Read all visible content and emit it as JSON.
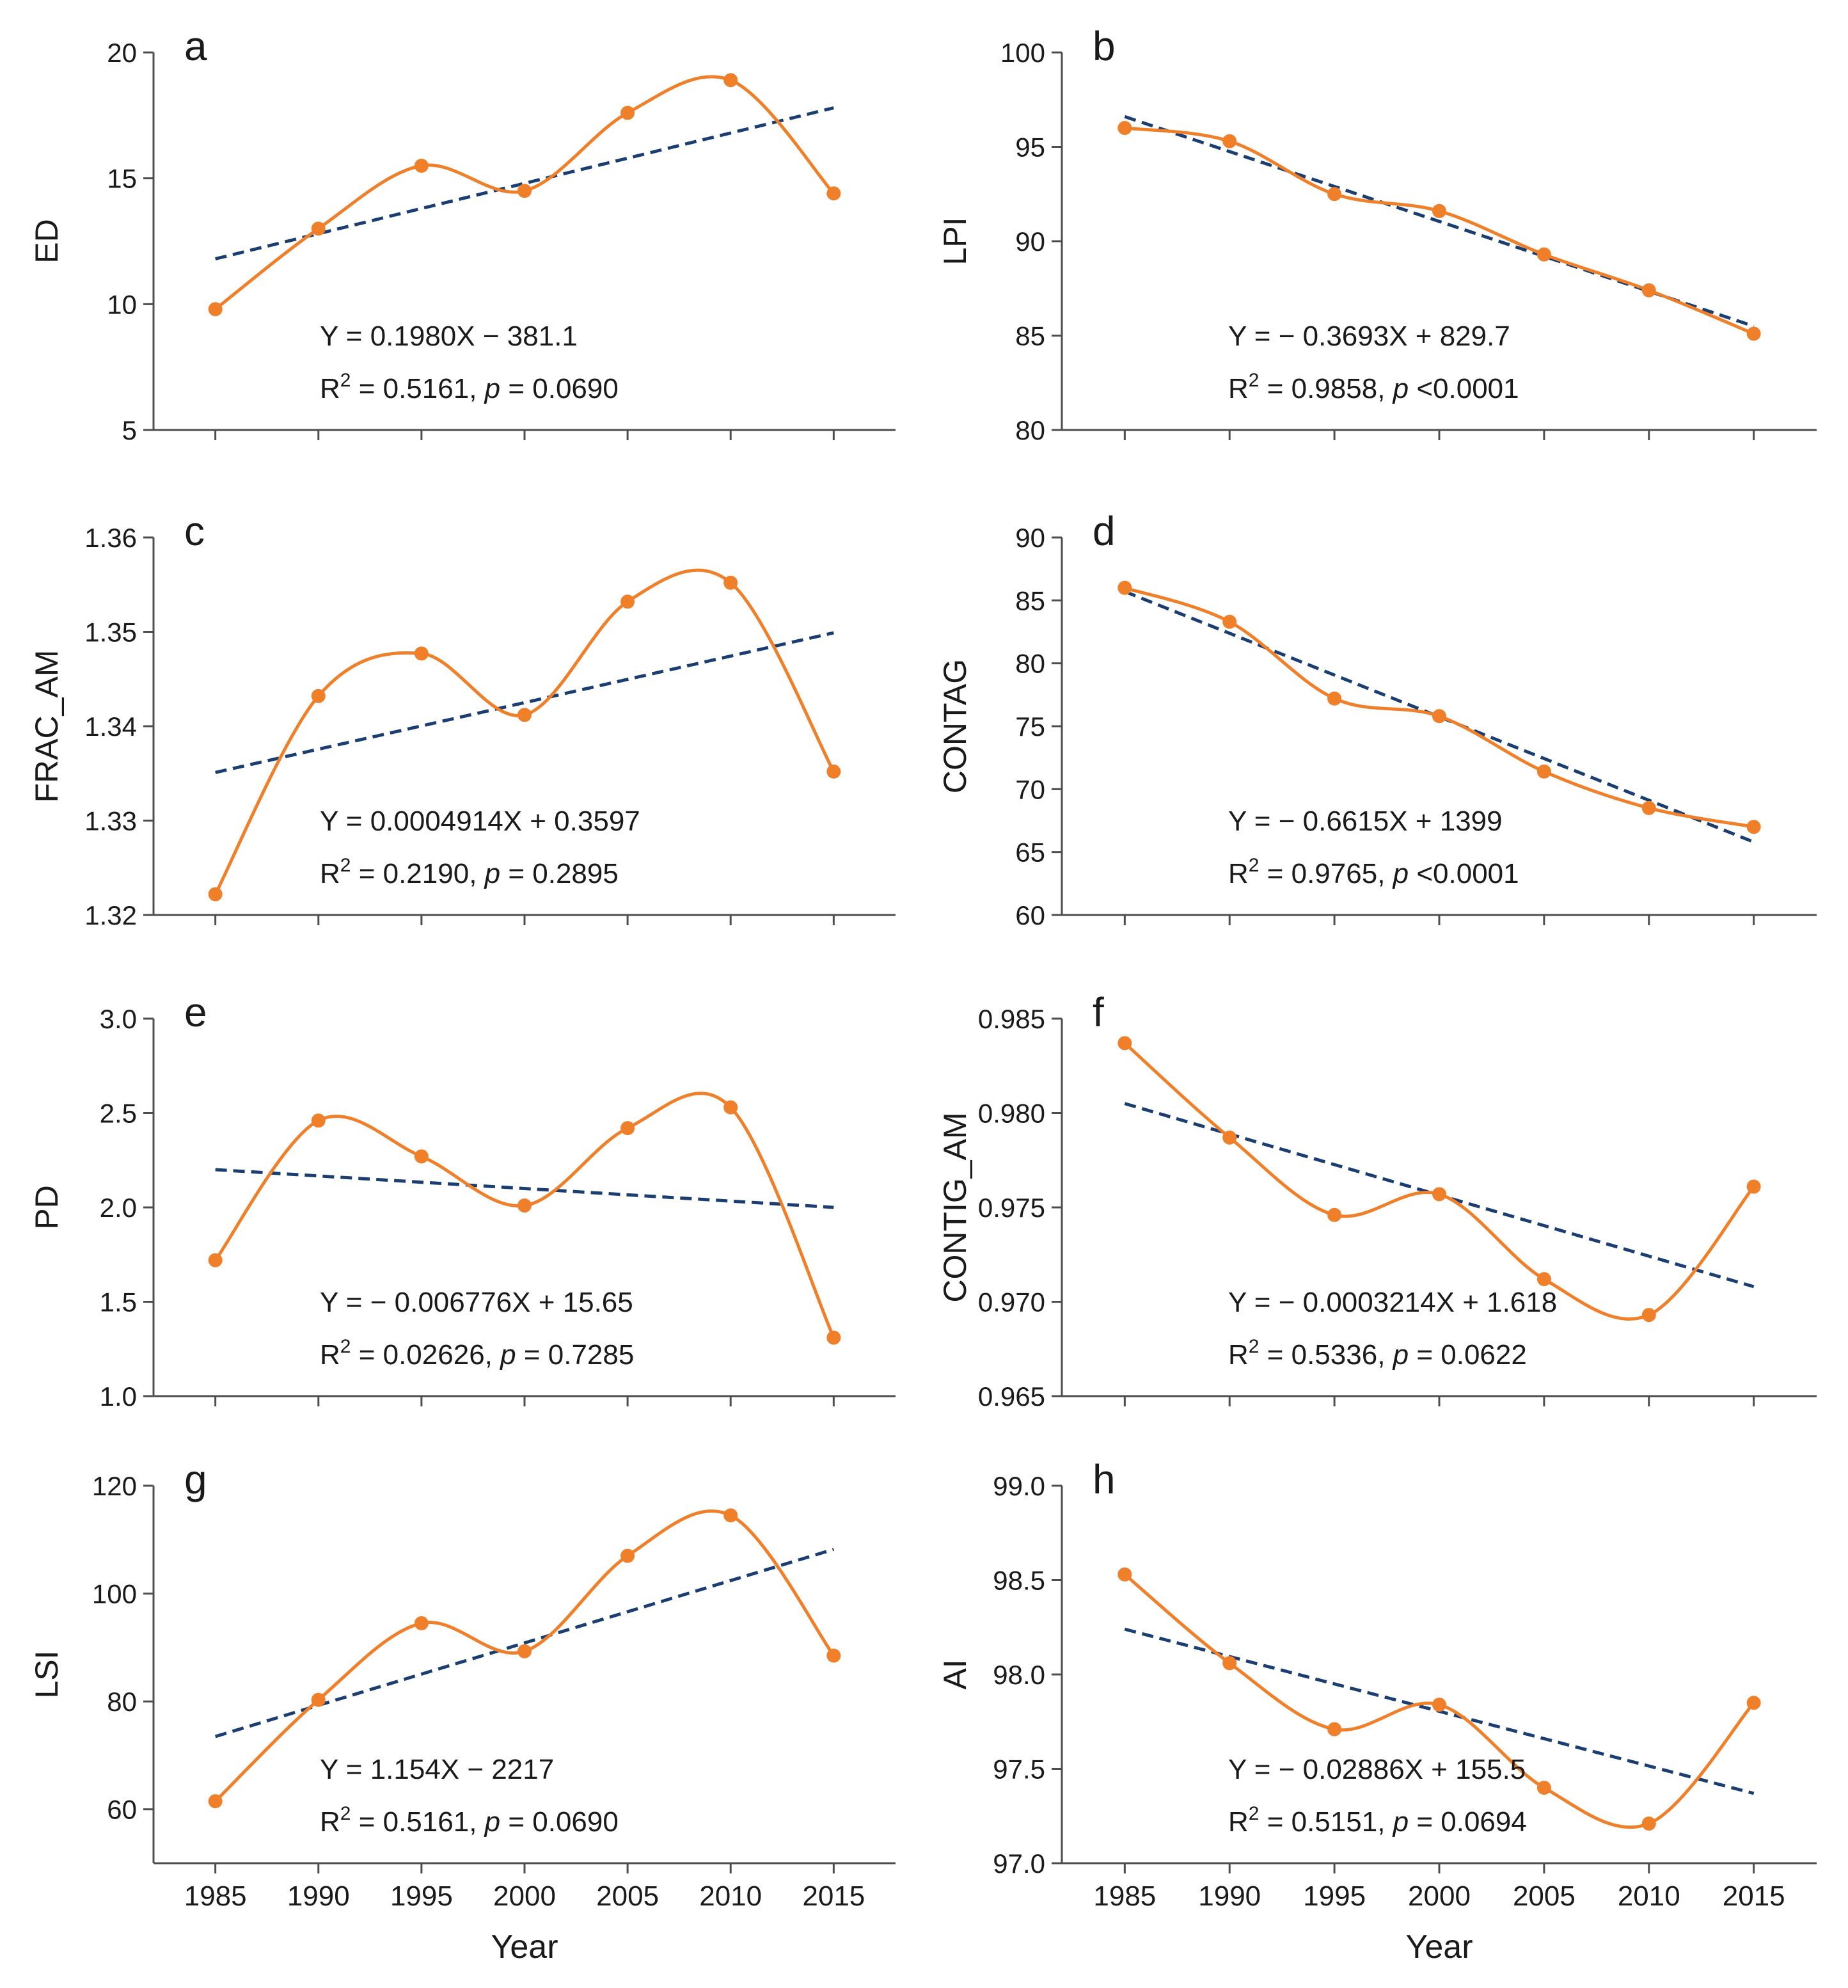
{
  "x_axis_title": "Year",
  "colors": {
    "series": "#F07F2A",
    "trend": "#1B3E72",
    "axis": "#4D4D4D",
    "text": "#1A1A1A"
  },
  "chart_data": [
    {
      "panel": "a",
      "type": "line",
      "ylabel": "ED",
      "x": [
        1985,
        1990,
        1995,
        2000,
        2005,
        2010,
        2015
      ],
      "xlim": [
        1982,
        2018
      ],
      "ylim": [
        5,
        20
      ],
      "yticks": [
        5,
        10,
        15,
        20
      ],
      "ytick_labels": [
        "5",
        "10",
        "15",
        "20"
      ],
      "values": [
        9.8,
        13.0,
        15.5,
        14.5,
        17.6,
        18.9,
        14.4
      ],
      "trend": {
        "x0": 1985,
        "y0": 11.8,
        "x1": 2015,
        "y1": 17.8
      },
      "equation": {
        "prefix": "Y = 0.1980X ",
        "op": "−",
        "suffix": " 381.1"
      },
      "stats": {
        "r2_value": " = 0.5161, ",
        "p_value": " = 0.0690"
      }
    },
    {
      "panel": "b",
      "type": "line",
      "ylabel": "LPI",
      "x": [
        1985,
        1990,
        1995,
        2000,
        2005,
        2010,
        2015
      ],
      "xlim": [
        1982,
        2018
      ],
      "ylim": [
        80,
        100
      ],
      "yticks": [
        80,
        85,
        90,
        95,
        100
      ],
      "ytick_labels": [
        "80",
        "85",
        "90",
        "95",
        "100"
      ],
      "values": [
        96.0,
        95.3,
        92.5,
        91.6,
        89.3,
        87.4,
        85.1
      ],
      "trend": {
        "x0": 1985,
        "y0": 96.6,
        "x1": 2015,
        "y1": 85.5
      },
      "equation": {
        "prefix": "Y = ",
        "op": "−",
        "suffix": " 0.3693X + 829.7"
      },
      "stats": {
        "r2_value": " = 0.9858, ",
        "p_value": " <0.0001"
      }
    },
    {
      "panel": "c",
      "type": "line",
      "ylabel": "FRAC_AM",
      "x": [
        1985,
        1990,
        1995,
        2000,
        2005,
        2010,
        2015
      ],
      "xlim": [
        1982,
        2018
      ],
      "ylim": [
        1.32,
        1.36
      ],
      "yticks": [
        1.32,
        1.33,
        1.34,
        1.35,
        1.36
      ],
      "ytick_labels": [
        "1.32",
        "1.33",
        "1.34",
        "1.35",
        "1.36"
      ],
      "values": [
        1.3222,
        1.3432,
        1.3477,
        1.3412,
        1.3532,
        1.3552,
        1.3352
      ],
      "trend": {
        "x0": 1985,
        "y0": 1.3351,
        "x1": 2015,
        "y1": 1.3499
      },
      "equation": {
        "prefix": "Y = 0.0004914X + 0.3597",
        "op": "",
        "suffix": ""
      },
      "stats": {
        "r2_value": " = 0.2190, ",
        "p_value": " = 0.2895"
      }
    },
    {
      "panel": "d",
      "type": "line",
      "ylabel": "CONTAG",
      "x": [
        1985,
        1990,
        1995,
        2000,
        2005,
        2010,
        2015
      ],
      "xlim": [
        1982,
        2018
      ],
      "ylim": [
        60,
        90
      ],
      "yticks": [
        60,
        65,
        70,
        75,
        80,
        85,
        90
      ],
      "ytick_labels": [
        "60",
        "65",
        "70",
        "75",
        "80",
        "85",
        "90"
      ],
      "values": [
        86.0,
        83.3,
        77.2,
        75.8,
        71.4,
        68.5,
        67.0
      ],
      "trend": {
        "x0": 1985,
        "y0": 85.7,
        "x1": 2015,
        "y1": 65.8
      },
      "equation": {
        "prefix": "Y = ",
        "op": "−",
        "suffix": " 0.6615X + 1399"
      },
      "stats": {
        "r2_value": " = 0.9765, ",
        "p_value": " <0.0001"
      }
    },
    {
      "panel": "e",
      "type": "line",
      "ylabel": "PD",
      "x": [
        1985,
        1990,
        1995,
        2000,
        2005,
        2010,
        2015
      ],
      "xlim": [
        1982,
        2018
      ],
      "ylim": [
        1.0,
        3.0
      ],
      "yticks": [
        1.0,
        1.5,
        2.0,
        2.5,
        3.0
      ],
      "ytick_labels": [
        "1.0",
        "1.5",
        "2.0",
        "2.5",
        "3.0"
      ],
      "values": [
        1.72,
        2.46,
        2.27,
        2.01,
        2.42,
        2.53,
        1.31
      ],
      "trend": {
        "x0": 1985,
        "y0": 2.2,
        "x1": 2015,
        "y1": 2.0
      },
      "equation": {
        "prefix": "Y = ",
        "op": "−",
        "suffix": " 0.006776X + 15.65"
      },
      "stats": {
        "r2_value": " = 0.02626, ",
        "p_value": " = 0.7285"
      }
    },
    {
      "panel": "f",
      "type": "line",
      "ylabel": "CONTIG_AM",
      "x": [
        1985,
        1990,
        1995,
        2000,
        2005,
        2010,
        2015
      ],
      "xlim": [
        1982,
        2018
      ],
      "ylim": [
        0.965,
        0.985
      ],
      "yticks": [
        0.965,
        0.97,
        0.975,
        0.98,
        0.985
      ],
      "ytick_labels": [
        "0.965",
        "0.970",
        "0.975",
        "0.980",
        "0.985"
      ],
      "values": [
        0.9837,
        0.9787,
        0.9746,
        0.9757,
        0.9712,
        0.9693,
        0.9761
      ],
      "trend": {
        "x0": 1985,
        "y0": 0.9805,
        "x1": 2015,
        "y1": 0.9708
      },
      "equation": {
        "prefix": "Y = ",
        "op": "−",
        "suffix": " 0.0003214X + 1.618"
      },
      "stats": {
        "r2_value": " = 0.5336, ",
        "p_value": " = 0.0622"
      }
    },
    {
      "panel": "g",
      "type": "line",
      "ylabel": "LSI",
      "x": [
        1985,
        1990,
        1995,
        2000,
        2005,
        2010,
        2015
      ],
      "xlim": [
        1982,
        2018
      ],
      "ylim": [
        50,
        120
      ],
      "yticks": [
        60,
        80,
        100,
        120
      ],
      "ytick_labels": [
        "60",
        "80",
        "100",
        "120"
      ],
      "values": [
        61.5,
        80.3,
        94.5,
        89.3,
        107.0,
        114.5,
        88.5
      ],
      "trend": {
        "x0": 1985,
        "y0": 73.5,
        "x1": 2015,
        "y1": 108.2
      },
      "equation": {
        "prefix": "Y = 1.154X ",
        "op": "−",
        "suffix": " 2217"
      },
      "stats": {
        "r2_value": " = 0.5161, ",
        "p_value": " = 0.0690"
      }
    },
    {
      "panel": "h",
      "type": "line",
      "ylabel": "AI",
      "x": [
        1985,
        1990,
        1995,
        2000,
        2005,
        2010,
        2015
      ],
      "xlim": [
        1982,
        2018
      ],
      "ylim": [
        97.0,
        99.0
      ],
      "yticks": [
        97.0,
        97.5,
        98.0,
        98.5,
        99.0
      ],
      "ytick_labels": [
        "97.0",
        "97.5",
        "98.0",
        "98.5",
        "99.0"
      ],
      "values": [
        98.53,
        98.06,
        97.71,
        97.84,
        97.4,
        97.21,
        97.85
      ],
      "trend": {
        "x0": 1985,
        "y0": 98.24,
        "x1": 2015,
        "y1": 97.37
      },
      "equation": {
        "prefix": "Y = ",
        "op": "−",
        "suffix": " 0.02886X + 155.5"
      },
      "stats": {
        "r2_value": " = 0.5151, ",
        "p_value": " = 0.0694"
      }
    }
  ],
  "stat_labels": {
    "r2_base": "R",
    "r2_sup": "2",
    "p_symbol": "p"
  },
  "x_tick_labels": [
    "1985",
    "1990",
    "1995",
    "2000",
    "2005",
    "2010",
    "2015"
  ]
}
